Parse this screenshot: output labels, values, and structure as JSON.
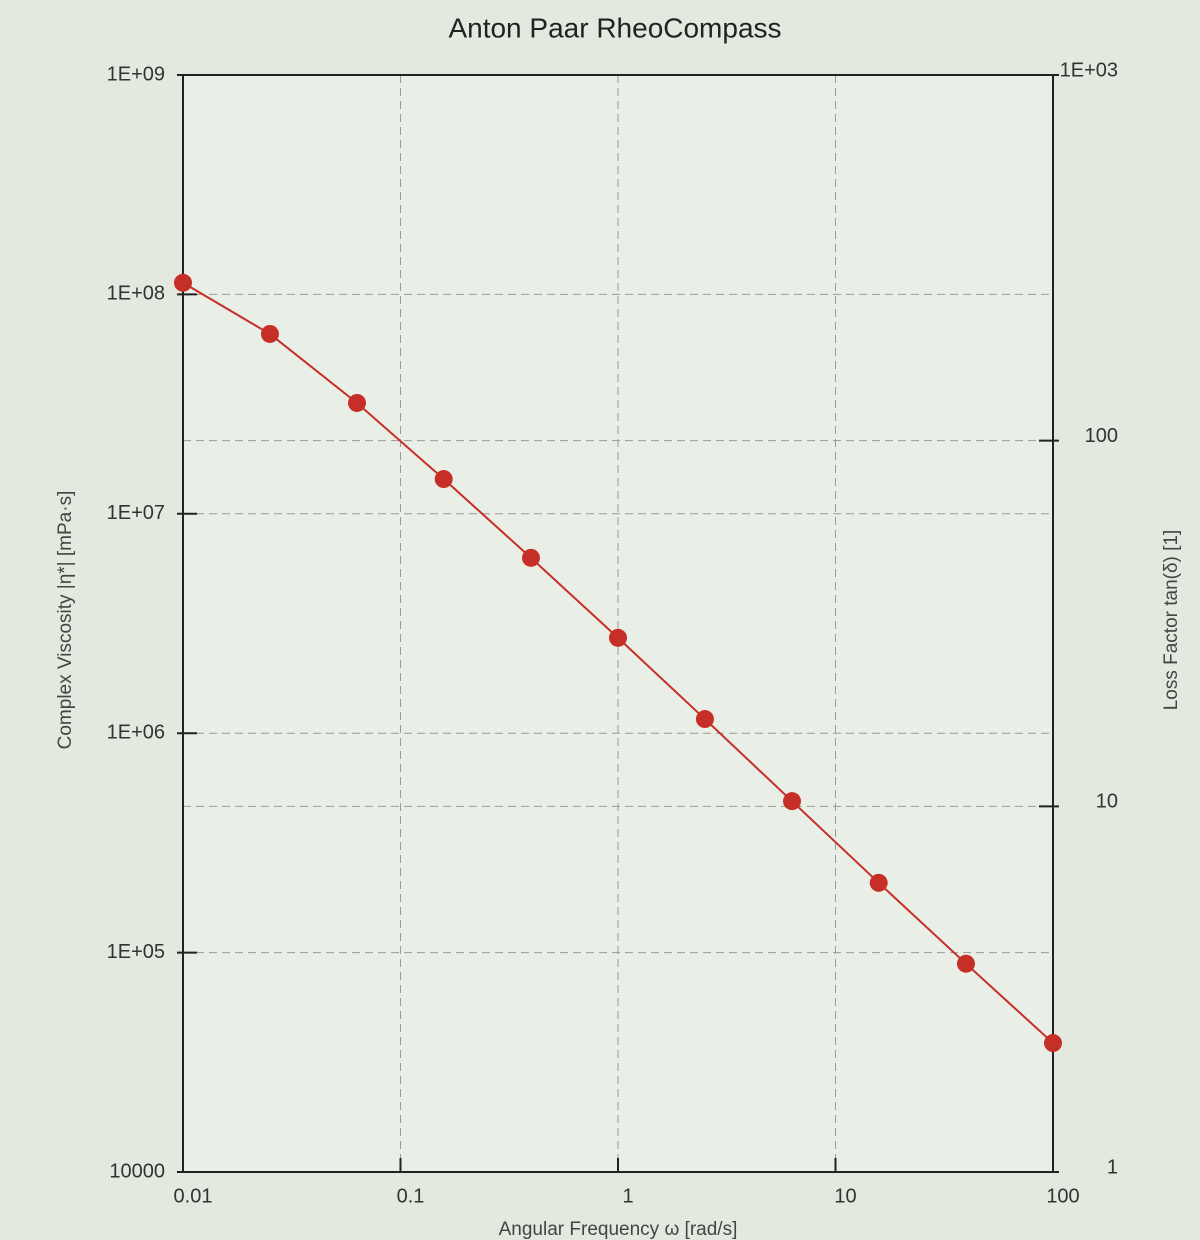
{
  "chart_data": {
    "type": "line",
    "title": "Anton Paar RheoCompass",
    "x_label": "Angular Frequency ω [rad/s]",
    "y_label": "Complex Viscosity |η*| [mPa·s]",
    "y2_label": "Loss Factor tan(δ) [1]",
    "x": [
      0.01,
      0.0251,
      0.0631,
      0.158,
      0.398,
      1,
      2.51,
      6.31,
      15.8,
      39.8,
      100
    ],
    "values": [
      113000000,
      66000000,
      32000000,
      14400000,
      6300000,
      2720000,
      1160000,
      490000,
      208000,
      89000,
      38700
    ],
    "color": "#c62f27",
    "xlim": [
      0.01,
      100
    ],
    "xticks": [
      0.01,
      0.1,
      1,
      10,
      100
    ],
    "ylim": [
      10000,
      1000000000
    ],
    "yticks": [
      10000,
      {
        "value": 100000,
        "label": "1E+05"
      },
      {
        "value": 1000000,
        "label": "1E+06"
      },
      {
        "value": 10000000,
        "label": "1E+07"
      },
      {
        "value": 100000000,
        "label": "1E+08"
      },
      {
        "value": 1000000000,
        "label": "1E+09"
      }
    ],
    "y2lim": [
      1,
      1000
    ],
    "y2ticks": [
      1,
      10,
      100,
      {
        "value": 1000,
        "label": "1E+03"
      }
    ],
    "xscale": "log",
    "yscale": "log",
    "y2scale": "log",
    "grid": true
  }
}
